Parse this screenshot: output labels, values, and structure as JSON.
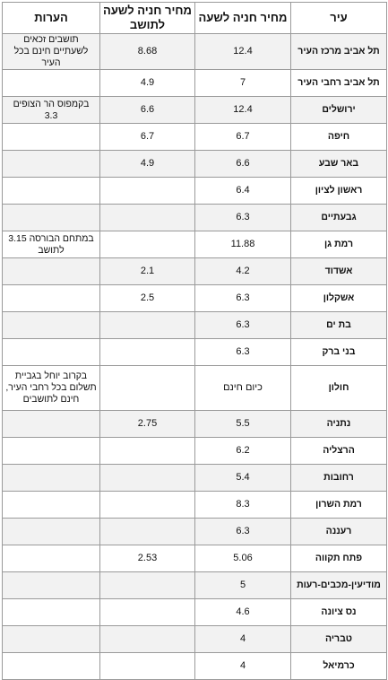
{
  "headers": {
    "city": "עיר",
    "price_hour": "מחיר חניה לשעה",
    "price_resident": "מחיר חניה לשעה לתושב",
    "notes": "הערות"
  },
  "rows": [
    {
      "city": "תל אביב מרכז העיר",
      "price": "12.4",
      "resident": "8.68",
      "note": "תושבים זכאים לשעתיים חינם בכל העיר"
    },
    {
      "city": "תל אביב רחבי העיר",
      "price": "7",
      "resident": "4.9",
      "note": ""
    },
    {
      "city": "ירושלים",
      "price": "12.4",
      "resident": "6.6",
      "note": "בקמפוס הר הצופים 3.3"
    },
    {
      "city": "חיפה",
      "price": "6.7",
      "resident": "6.7",
      "note": ""
    },
    {
      "city": "באר שבע",
      "price": "6.6",
      "resident": "4.9",
      "note": ""
    },
    {
      "city": "ראשון לציון",
      "price": "6.4",
      "resident": "",
      "note": ""
    },
    {
      "city": "גבעתיים",
      "price": "6.3",
      "resident": "",
      "note": ""
    },
    {
      "city": "רמת גן",
      "price": "11.88",
      "resident": "",
      "note": "במתחם הבורסה 3.15 לתושב"
    },
    {
      "city": "אשדוד",
      "price": "4.2",
      "resident": "2.1",
      "note": ""
    },
    {
      "city": "אשקלון",
      "price": "6.3",
      "resident": "2.5",
      "note": ""
    },
    {
      "city": "בת ים",
      "price": "6.3",
      "resident": "",
      "note": ""
    },
    {
      "city": "בני ברק",
      "price": "6.3",
      "resident": "",
      "note": ""
    },
    {
      "city": "חולון",
      "price": "כיום חינם",
      "resident": "",
      "note": "בקרוב יוחל בגביית תשלום בכל רחבי העיר,  חינם לתושבים"
    },
    {
      "city": "נתניה",
      "price": "5.5",
      "resident": "2.75",
      "note": ""
    },
    {
      "city": "הרצליה",
      "price": "6.2",
      "resident": "",
      "note": ""
    },
    {
      "city": "רחובות",
      "price": "5.4",
      "resident": "",
      "note": ""
    },
    {
      "city": "רמת השרון",
      "price": "8.3",
      "resident": "",
      "note": ""
    },
    {
      "city": "רעננה",
      "price": "6.3",
      "resident": "",
      "note": ""
    },
    {
      "city": "פתח תקווה",
      "price": "5.06",
      "resident": "2.53",
      "note": ""
    },
    {
      "city": "מודיעין-מכבים-רעות",
      "price": "5",
      "resident": "",
      "note": ""
    },
    {
      "city": "נס ציונה",
      "price": "4.6",
      "resident": "",
      "note": ""
    },
    {
      "city": "טבריה",
      "price": "4",
      "resident": "",
      "note": ""
    },
    {
      "city": "כרמיאל",
      "price": "4",
      "resident": "",
      "note": ""
    }
  ]
}
